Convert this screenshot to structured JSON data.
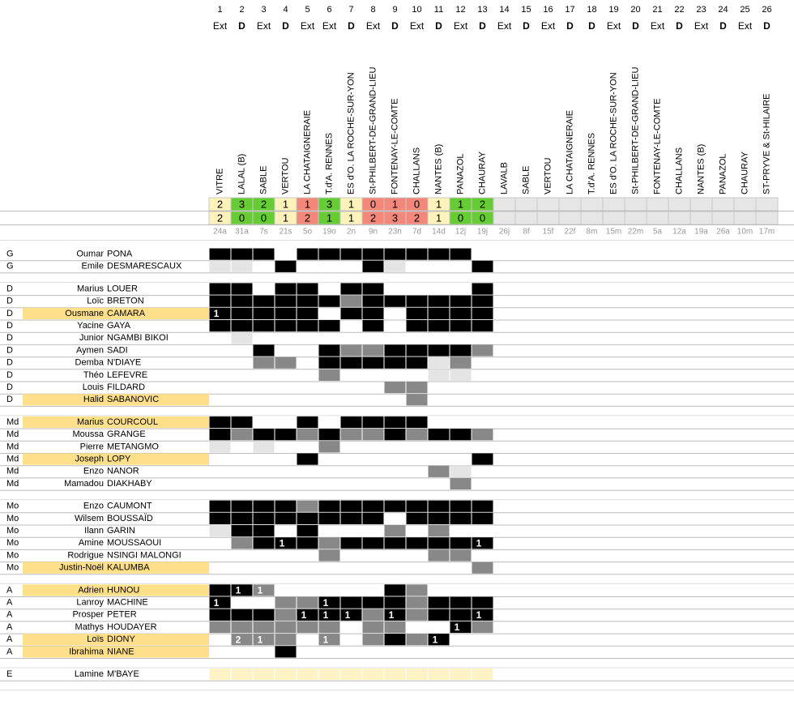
{
  "matches": [
    {
      "num": 1,
      "venue": "Ext",
      "opponent": "VITRE",
      "for": 2,
      "against": 2,
      "date": "24a"
    },
    {
      "num": 2,
      "venue": "D",
      "opponent": "LALAL (B)",
      "for": 3,
      "against": 0,
      "date": "31a"
    },
    {
      "num": 3,
      "venue": "Ext",
      "opponent": "SABLE",
      "for": 2,
      "against": 0,
      "date": "7s"
    },
    {
      "num": 4,
      "venue": "D",
      "opponent": "VERTOU",
      "for": 1,
      "against": 1,
      "date": "21s"
    },
    {
      "num": 5,
      "venue": "Ext",
      "opponent": "LA CHATAIGNERAIE",
      "for": 1,
      "against": 2,
      "date": "5o"
    },
    {
      "num": 6,
      "venue": "Ext",
      "opponent": "T.d'A. RENNES",
      "for": 3,
      "against": 1,
      "date": "19o"
    },
    {
      "num": 7,
      "venue": "D",
      "opponent": "ES d'O. LA ROCHE-SUR-YON",
      "for": 1,
      "against": 1,
      "date": "2n"
    },
    {
      "num": 8,
      "venue": "Ext",
      "opponent": "St-PHILBERT-DE-GRAND-LIEU",
      "for": 0,
      "against": 2,
      "date": "9n"
    },
    {
      "num": 9,
      "venue": "D",
      "opponent": "FONTENAY-LE-COMTE",
      "for": 1,
      "against": 3,
      "date": "23n"
    },
    {
      "num": 10,
      "venue": "Ext",
      "opponent": "CHALLANS",
      "for": 0,
      "against": 2,
      "date": "7d"
    },
    {
      "num": 11,
      "venue": "D",
      "opponent": "NANTES (B)",
      "for": 1,
      "against": 1,
      "date": "14d"
    },
    {
      "num": 12,
      "venue": "Ext",
      "opponent": "PANAZOL",
      "for": 1,
      "against": 0,
      "date": "12j"
    },
    {
      "num": 13,
      "venue": "D",
      "opponent": "CHAURAY",
      "for": 2,
      "against": 0,
      "date": "19j"
    },
    {
      "num": 14,
      "venue": "Ext",
      "opponent": "LAVALB",
      "for": null,
      "against": null,
      "date": "26j"
    },
    {
      "num": 15,
      "venue": "D",
      "opponent": "SABLE",
      "for": null,
      "against": null,
      "date": "8f"
    },
    {
      "num": 16,
      "venue": "Ext",
      "opponent": "VERTOU",
      "for": null,
      "against": null,
      "date": "15f"
    },
    {
      "num": 17,
      "venue": "D",
      "opponent": "LA CHATAIGNERAIE",
      "for": null,
      "against": null,
      "date": "22f"
    },
    {
      "num": 18,
      "venue": "D",
      "opponent": "T.d'A. RENNES",
      "for": null,
      "against": null,
      "date": "8m"
    },
    {
      "num": 19,
      "venue": "Ext",
      "opponent": "ES d'O. LA ROCHE-SUR-YON",
      "for": null,
      "against": null,
      "date": "15m"
    },
    {
      "num": 20,
      "venue": "D",
      "opponent": "St-PHILBERT-DE-GRAND-LIEU",
      "for": null,
      "against": null,
      "date": "22m"
    },
    {
      "num": 21,
      "venue": "Ext",
      "opponent": "FONTENAY-LE-COMTE",
      "for": null,
      "against": null,
      "date": "5a"
    },
    {
      "num": 22,
      "venue": "D",
      "opponent": "CHALLANS",
      "for": null,
      "against": null,
      "date": "12a"
    },
    {
      "num": 23,
      "venue": "Ext",
      "opponent": "NANTES (B)",
      "for": null,
      "against": null,
      "date": "19a"
    },
    {
      "num": 24,
      "venue": "D",
      "opponent": "PANAZOL",
      "for": null,
      "against": null,
      "date": "26a"
    },
    {
      "num": 25,
      "venue": "Ext",
      "opponent": "CHAURAY",
      "for": null,
      "against": null,
      "date": "10m"
    },
    {
      "num": 26,
      "venue": "D",
      "opponent": "ST-PRYVE & St-HILAIRE",
      "for": null,
      "against": null,
      "date": "17m"
    }
  ],
  "groups": [
    {
      "players": [
        {
          "pos": "G",
          "first": "Oumar",
          "last": "PONA",
          "highlight": false,
          "cells": "BBBWBBBBBBBBW"
        },
        {
          "pos": "G",
          "first": "Emile",
          "last": "DESMARESCAUX",
          "highlight": false,
          "cells": "LLWBWWWBLWWWB"
        }
      ]
    },
    {
      "players": [
        {
          "pos": "D",
          "first": "Marius",
          "last": "LOUER",
          "highlight": false,
          "cells": "BBWBBWBBWWWWB"
        },
        {
          "pos": "D",
          "first": "Loïc",
          "last": "BRETON",
          "highlight": false,
          "cells": "BBBBBBGBBBBBB"
        },
        {
          "pos": "D",
          "first": "Ousmane",
          "last": "CAMARA",
          "highlight": true,
          "cells": "BBBBBWBBWBBBB",
          "goals": [
            1,
            null,
            null,
            null,
            null,
            null,
            null,
            null,
            null,
            null,
            null,
            null,
            null
          ]
        },
        {
          "pos": "D",
          "first": "Yacine",
          "last": "GAYA",
          "highlight": false,
          "cells": "BBBBBBWBWBBBB"
        },
        {
          "pos": "D",
          "first": "Junior",
          "last": "NGAMBI BIKOI",
          "highlight": false,
          "cells": "WLWWWWWWWWWWW"
        },
        {
          "pos": "D",
          "first": "Aymen",
          "last": "SADI",
          "highlight": false,
          "cells": "WWBWWBGGBBBBG"
        },
        {
          "pos": "D",
          "first": "Demba",
          "last": "N'DIAYE",
          "highlight": false,
          "cells": "WWGGWBBBBBLGW"
        },
        {
          "pos": "D",
          "first": "Théo",
          "last": "LEFEVRE",
          "highlight": false,
          "cells": "WWWWWGWWWWLLW"
        },
        {
          "pos": "D",
          "first": "Louis",
          "last": "FILDARD",
          "highlight": false,
          "cells": "WWWWWWWWGGWWW"
        },
        {
          "pos": "D",
          "first": "Halid",
          "last": "SABANOVIC",
          "highlight": true,
          "cells": "WWWWWWWWWGWWW"
        }
      ]
    },
    {
      "players": [
        {
          "pos": "Md",
          "first": "Marius",
          "last": "COURCOUL",
          "highlight": true,
          "cells": "BBWWBWBBBBWWW"
        },
        {
          "pos": "Md",
          "first": "Moussa",
          "last": "GRANGE",
          "highlight": false,
          "cells": "BGBBGBGGBGBBG"
        },
        {
          "pos": "Md",
          "first": "Pierre",
          "last": "METANGMO",
          "highlight": false,
          "cells": "LWLWWGWWWWWWW"
        },
        {
          "pos": "Md",
          "first": "Joseph",
          "last": "LOPY",
          "highlight": true,
          "cells": "WWWWBWWWWWWWB"
        },
        {
          "pos": "Md",
          "first": "Enzo",
          "last": "NANOR",
          "highlight": false,
          "cells": "WWWWWWWWWWGLW"
        },
        {
          "pos": "Md",
          "first": "Mamadou",
          "last": "DIAKHABY",
          "highlight": false,
          "cells": "WWWWWWWWWWWGW"
        }
      ]
    },
    {
      "players": [
        {
          "pos": "Mo",
          "first": "Enzo",
          "last": "CAUMONT",
          "highlight": false,
          "cells": "BBBBGBBBBBBBB"
        },
        {
          "pos": "Mo",
          "first": "Wilsem",
          "last": "BOUSSAÏD",
          "highlight": false,
          "cells": "BBBBBBBBWBBBB"
        },
        {
          "pos": "Mo",
          "first": "Ilann",
          "last": "GARIN",
          "highlight": false,
          "cells": "LBBWBWWWGWGWW"
        },
        {
          "pos": "Mo",
          "first": "Amine",
          "last": "MOUSSAOUI",
          "highlight": false,
          "cells": "WGBBBGBBBBBBB",
          "goals": [
            null,
            null,
            null,
            1,
            null,
            null,
            null,
            null,
            null,
            null,
            null,
            null,
            1
          ]
        },
        {
          "pos": "Mo",
          "first": "Rodrigue",
          "last": "NSINGI MALONGI",
          "highlight": false,
          "cells": "WWWWWGWWWWGGW"
        },
        {
          "pos": "Mo",
          "first": "Justin-Noël",
          "last": "KALUMBA",
          "highlight": true,
          "cells": "WWWWWWWWWWWWG"
        }
      ]
    },
    {
      "players": [
        {
          "pos": "A",
          "first": "Adrien",
          "last": "HUNOU",
          "highlight": true,
          "cells": "BBGWWWWWBGWWW",
          "goals": [
            null,
            1,
            1,
            null,
            null,
            null,
            null,
            null,
            null,
            null,
            null,
            null,
            null
          ]
        },
        {
          "pos": "A",
          "first": "Lanroy",
          "last": "MACHINE",
          "highlight": false,
          "cells": "BWWGGBBBBGBBB",
          "goals": [
            1,
            null,
            null,
            null,
            null,
            1,
            null,
            null,
            null,
            null,
            null,
            null,
            null
          ]
        },
        {
          "pos": "A",
          "first": "Prosper",
          "last": "PETER",
          "highlight": false,
          "cells": "BBBGBBBGBGBBB",
          "goals": [
            null,
            null,
            null,
            null,
            1,
            1,
            1,
            null,
            1,
            null,
            null,
            null,
            1
          ]
        },
        {
          "pos": "A",
          "first": "Mathys",
          "last": "HOUDAYER",
          "highlight": false,
          "cells": "GGGGGGWGGWWBG",
          "goals": [
            null,
            null,
            null,
            null,
            null,
            null,
            null,
            null,
            null,
            null,
            null,
            1,
            null
          ]
        },
        {
          "pos": "A",
          "first": "Loïs",
          "last": "DIONY",
          "highlight": true,
          "cells": "WGGGWGWGBGBWW",
          "goals": [
            null,
            2,
            1,
            null,
            null,
            1,
            null,
            null,
            null,
            null,
            1,
            null,
            null
          ]
        },
        {
          "pos": "A",
          "first": "Ibrahima",
          "last": "NIANE",
          "highlight": true,
          "cells": "WWWBWWWWWWWWW"
        }
      ]
    },
    {
      "players": [
        {
          "pos": "E",
          "first": "Lamine",
          "last": "M'BAYE",
          "highlight": false,
          "cells": "YYYYYYYYYYYYY"
        }
      ]
    }
  ]
}
